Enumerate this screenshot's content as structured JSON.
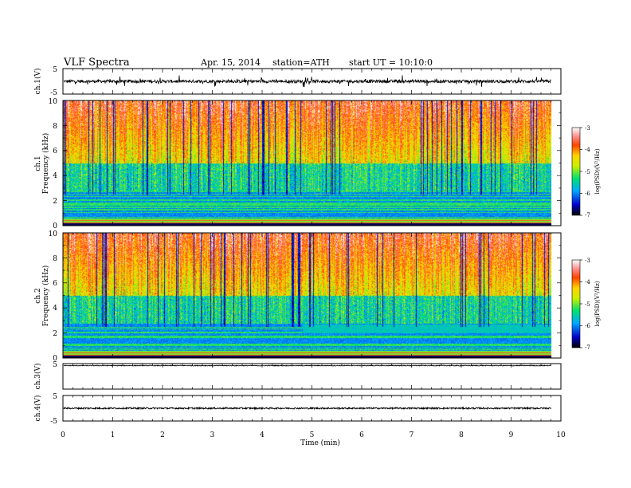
{
  "header": {
    "title": "VLF  Spectra",
    "date": "Apr. 15, 2014",
    "station": "station=ATH",
    "start": "start  UT =   10:10:0"
  },
  "chart_data": {
    "type": "figure",
    "x_axis": {
      "label": "Time  (min)",
      "range": [
        0,
        10
      ],
      "ticks": [
        "0",
        "1",
        "2",
        "3",
        "4",
        "5",
        "6",
        "7",
        "8",
        "9",
        "10"
      ],
      "data_end": 9.8
    },
    "panels": [
      {
        "kind": "line",
        "label": "ch.1(V)",
        "yrange": [
          -5,
          5
        ],
        "ytick_labels": [
          "5",
          "-5"
        ],
        "baseline": 0,
        "noise_amplitude": 0.6,
        "spike_amplitude": 2.0
      },
      {
        "kind": "spectrogram",
        "label_top": "ch.1",
        "label_bottom": "Frequency  (kHz)",
        "yrange": [
          0,
          10
        ],
        "ytick_labels": [
          "0",
          "2",
          "4",
          "6",
          "8",
          "10"
        ],
        "colorbar": {
          "label": "log(PSD)(V²/Hz)",
          "range": [
            -7,
            -3
          ],
          "tick_labels": [
            "-3",
            "-4",
            "-5",
            "-6",
            "-7"
          ]
        }
      },
      {
        "kind": "spectrogram",
        "label_top": "ch.2",
        "label_bottom": "Frequency  (kHz)",
        "yrange": [
          0,
          10
        ],
        "ytick_labels": [
          "0",
          "2",
          "4",
          "6",
          "8",
          "10"
        ],
        "colorbar": {
          "label": "log(PSD)(V²/Hz)",
          "range": [
            -7,
            -3
          ],
          "tick_labels": [
            "-3",
            "-4",
            "-5",
            "-6",
            "-7"
          ]
        }
      },
      {
        "kind": "line",
        "label": "ch.3(V)",
        "yrange": [
          -5,
          5
        ],
        "ytick_labels": [
          "5"
        ],
        "baseline": 4.2,
        "noise_amplitude": 0.15
      },
      {
        "kind": "line",
        "label": "ch.4(V)",
        "yrange": [
          -5,
          5
        ],
        "ytick_labels": [
          "5",
          "-5"
        ],
        "baseline": 0,
        "noise_amplitude": 0.3
      }
    ]
  }
}
